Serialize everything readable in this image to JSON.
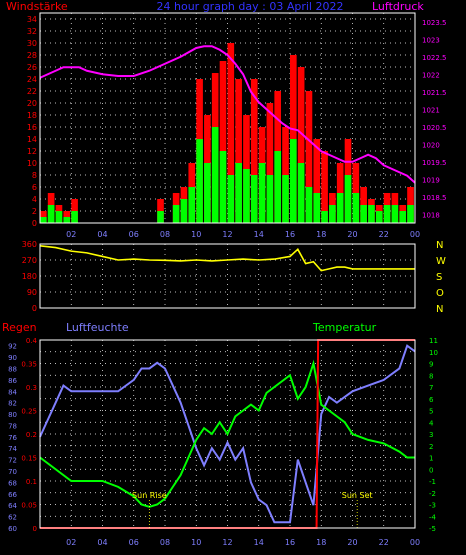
{
  "colors": {
    "wind_gust": "#ff0000",
    "wind_avg": "#00ff00",
    "pressure": "#ff00ff",
    "direction": "#ffff00",
    "humidity": "#7f7fff",
    "temperature": "#00ff00",
    "rain": "#ff0000",
    "grid": "#ffffff",
    "axis_frame": "#ffffff",
    "left_axis_text": "#ff0000",
    "pressure_axis_text": "#ff00ff",
    "direction_axis_text": "#ffff00",
    "humidity_axis_text": "#7f7fff",
    "temperature_axis_text": "#00ff00",
    "time_text": "#7f7fff",
    "sun_text": "#ffff00"
  },
  "header": {
    "left_label": "Windstärke",
    "title": "24 hour graph day : 03 April 2022",
    "right_label": "Luftdruck"
  },
  "x_ticks": [
    "02",
    "04",
    "06",
    "08",
    "10",
    "12",
    "14",
    "16",
    "18",
    "20",
    "22",
    "00"
  ],
  "chart_data": [
    {
      "type": "bar",
      "panel": "wind-pressure",
      "yaxis_left": {
        "label": "Windstärke",
        "min": 0,
        "max": 35,
        "ticks": [
          0,
          2,
          4,
          6,
          8,
          10,
          12,
          14,
          16,
          18,
          20,
          22,
          24,
          26,
          28,
          30,
          32,
          34
        ]
      },
      "yaxis_right": {
        "label": "Luftdruck",
        "min": 1017.75,
        "max": 1023.75,
        "ticks": [
          "1018",
          "1018.5",
          "1019",
          "1019.5",
          "1020",
          "1020.5",
          "1021",
          "1021.5",
          "1022",
          "1022.5",
          "1023",
          "1023.5"
        ]
      },
      "x_range_hours": [
        0,
        24
      ],
      "series": [
        {
          "name": "Windstärke",
          "kind": "bars",
          "x": [
            0.0,
            0.5,
            1.0,
            1.5,
            2.0,
            2.5,
            3.0,
            3.5,
            4.0,
            4.5,
            5.0,
            5.5,
            6.0,
            6.5,
            7.0,
            7.5,
            8.0,
            8.5,
            9.0,
            9.5,
            10.0,
            10.5,
            11.0,
            11.5,
            12.0,
            12.5,
            13.0,
            13.5,
            14.0,
            14.5,
            15.0,
            15.5,
            16.0,
            16.5,
            17.0,
            17.5,
            18.0,
            18.5,
            19.0,
            19.5,
            20.0,
            20.5,
            21.0,
            21.5,
            22.0,
            22.5,
            23.0,
            23.5
          ],
          "gust": [
            2,
            5,
            3,
            2,
            4,
            0,
            0,
            0,
            0,
            0,
            0,
            0,
            0,
            0,
            0,
            4,
            0,
            5,
            6,
            10,
            24,
            18,
            25,
            27,
            30,
            24,
            18,
            24,
            16,
            20,
            22,
            16,
            28,
            26,
            22,
            14,
            12,
            5,
            10,
            14,
            10,
            6,
            4,
            3,
            5,
            5,
            3,
            6
          ],
          "avg": [
            1,
            3,
            2,
            1,
            2,
            0,
            0,
            0,
            0,
            0,
            0,
            0,
            0,
            0,
            0,
            2,
            0,
            3,
            4,
            6,
            14,
            10,
            16,
            12,
            8,
            10,
            9,
            8,
            10,
            8,
            12,
            8,
            14,
            10,
            6,
            5,
            2,
            3,
            5,
            8,
            5,
            3,
            3,
            2,
            3,
            3,
            2,
            3
          ]
        }
      ]
    },
    {
      "type": "line",
      "panel": "wind-pressure",
      "series": [
        {
          "name": "Luftdruck",
          "x": [
            0,
            0.5,
            1,
            1.5,
            2,
            2.5,
            3,
            4,
            5,
            6,
            7,
            8,
            9,
            10,
            10.5,
            11,
            11.5,
            12,
            12.5,
            13,
            13.5,
            14,
            14.5,
            15,
            15.5,
            16,
            16.5,
            17,
            17.5,
            18,
            18.5,
            19,
            19.5,
            20,
            20.5,
            21,
            21.5,
            22,
            22.5,
            23,
            23.5,
            24
          ],
          "y": [
            1021.9,
            1022.0,
            1022.1,
            1022.2,
            1022.2,
            1022.2,
            1022.1,
            1022.0,
            1021.95,
            1021.95,
            1022.1,
            1022.3,
            1022.5,
            1022.75,
            1022.8,
            1022.8,
            1022.7,
            1022.55,
            1022.3,
            1022.0,
            1021.5,
            1021.2,
            1021.0,
            1020.8,
            1020.6,
            1020.45,
            1020.4,
            1020.2,
            1020.0,
            1019.8,
            1019.7,
            1019.6,
            1019.5,
            1019.5,
            1019.6,
            1019.7,
            1019.6,
            1019.4,
            1019.3,
            1019.2,
            1019.1,
            1018.9
          ]
        }
      ]
    },
    {
      "type": "line",
      "panel": "wind-direction",
      "yaxis_left": {
        "min": 0,
        "max": 360,
        "ticks": [
          0,
          90,
          180,
          270,
          360
        ]
      },
      "yaxis_right_labels": [
        "N",
        "W",
        "S",
        "O",
        "N"
      ],
      "series": [
        {
          "name": "Windrichtung",
          "x": [
            0,
            1,
            2,
            3,
            4,
            5,
            6,
            7,
            8,
            9,
            10,
            11,
            12,
            13,
            14,
            15,
            16,
            16.5,
            17,
            17.5,
            18,
            18.5,
            19,
            19.5,
            20,
            21,
            22,
            23,
            24
          ],
          "y": [
            350,
            340,
            320,
            310,
            290,
            270,
            275,
            270,
            268,
            265,
            270,
            265,
            270,
            275,
            270,
            275,
            290,
            330,
            250,
            260,
            210,
            220,
            230,
            230,
            220,
            220,
            220,
            220,
            220
          ]
        }
      ]
    },
    {
      "type": "line",
      "panel": "rain-humidity-temperature",
      "yaxis_rain": {
        "label": "Regen",
        "min": 0,
        "max": 0.4,
        "ticks": [
          "0",
          "0.05",
          "0.1",
          "0.15",
          "0.2",
          "0.25",
          "0.3",
          "0.35",
          "0.4"
        ]
      },
      "yaxis_humidity": {
        "label": "Luftfeuchte",
        "min": 60,
        "max": 93,
        "ticks": [
          60,
          62,
          64,
          66,
          68,
          70,
          72,
          74,
          76,
          78,
          80,
          82,
          84,
          86,
          88,
          90,
          92
        ]
      },
      "yaxis_temperature": {
        "label": "Temperatur",
        "min": -5,
        "max": 11,
        "ticks": [
          -5,
          -4,
          -3,
          -2,
          -1,
          0,
          1,
          2,
          3,
          4,
          5,
          6,
          7,
          8,
          9,
          10,
          11
        ]
      },
      "annotations": [
        {
          "text": "Sun Rise",
          "x_hour": 7.0
        },
        {
          "text": "Sun Set",
          "x_hour": 20.3
        }
      ],
      "series": [
        {
          "name": "Regen",
          "x": [
            0,
            17.7,
            17.8,
            24
          ],
          "y": [
            0,
            0,
            0.4,
            0.4
          ]
        },
        {
          "name": "Luftfeuchte",
          "x": [
            0,
            0.5,
            1,
            1.5,
            2,
            3,
            4,
            5,
            6,
            6.5,
            7,
            7.5,
            8,
            8.5,
            9,
            9.5,
            10,
            10.5,
            11,
            11.5,
            12,
            12.5,
            13,
            13.5,
            14,
            14.5,
            15,
            15.5,
            16,
            16.5,
            17,
            17.5,
            18,
            18.5,
            19,
            19.5,
            20,
            21,
            22,
            23,
            23.5,
            24
          ],
          "y": [
            76,
            79,
            82,
            85,
            84,
            84,
            84,
            84,
            86,
            88,
            88,
            89,
            88,
            85,
            82,
            78,
            74,
            71,
            74,
            72,
            75,
            72,
            74,
            68,
            65,
            64,
            61,
            61,
            61,
            72,
            68,
            64,
            80,
            83,
            82,
            83,
            84,
            85,
            86,
            88,
            92,
            91
          ]
        },
        {
          "name": "Temperatur",
          "x": [
            0,
            0.5,
            1,
            2,
            3,
            4,
            5,
            6,
            6.5,
            7,
            7.5,
            8,
            8.5,
            9,
            9.5,
            10,
            10.5,
            11,
            11.5,
            12,
            12.5,
            13,
            13.5,
            14,
            14.5,
            15,
            15.5,
            16,
            16.5,
            17,
            17.5,
            18,
            18.5,
            19,
            19.5,
            20,
            21,
            22,
            23,
            23.5,
            24
          ],
          "y": [
            1,
            0.5,
            0,
            -1,
            -1,
            -1,
            -1.5,
            -2.3,
            -3,
            -3.2,
            -3,
            -2.5,
            -1.5,
            -0.5,
            1,
            2.5,
            3.5,
            3,
            4,
            3,
            4.5,
            5,
            5.5,
            5,
            6.5,
            7,
            7.5,
            8,
            6,
            7,
            9,
            5.5,
            5,
            4.5,
            4,
            3,
            2.5,
            2.2,
            1.5,
            1,
            1
          ]
        }
      ]
    }
  ],
  "panel3_labels": {
    "regen": "Regen",
    "luftfeuchte": "Luftfeuchte",
    "temperatur": "Temperatur"
  }
}
